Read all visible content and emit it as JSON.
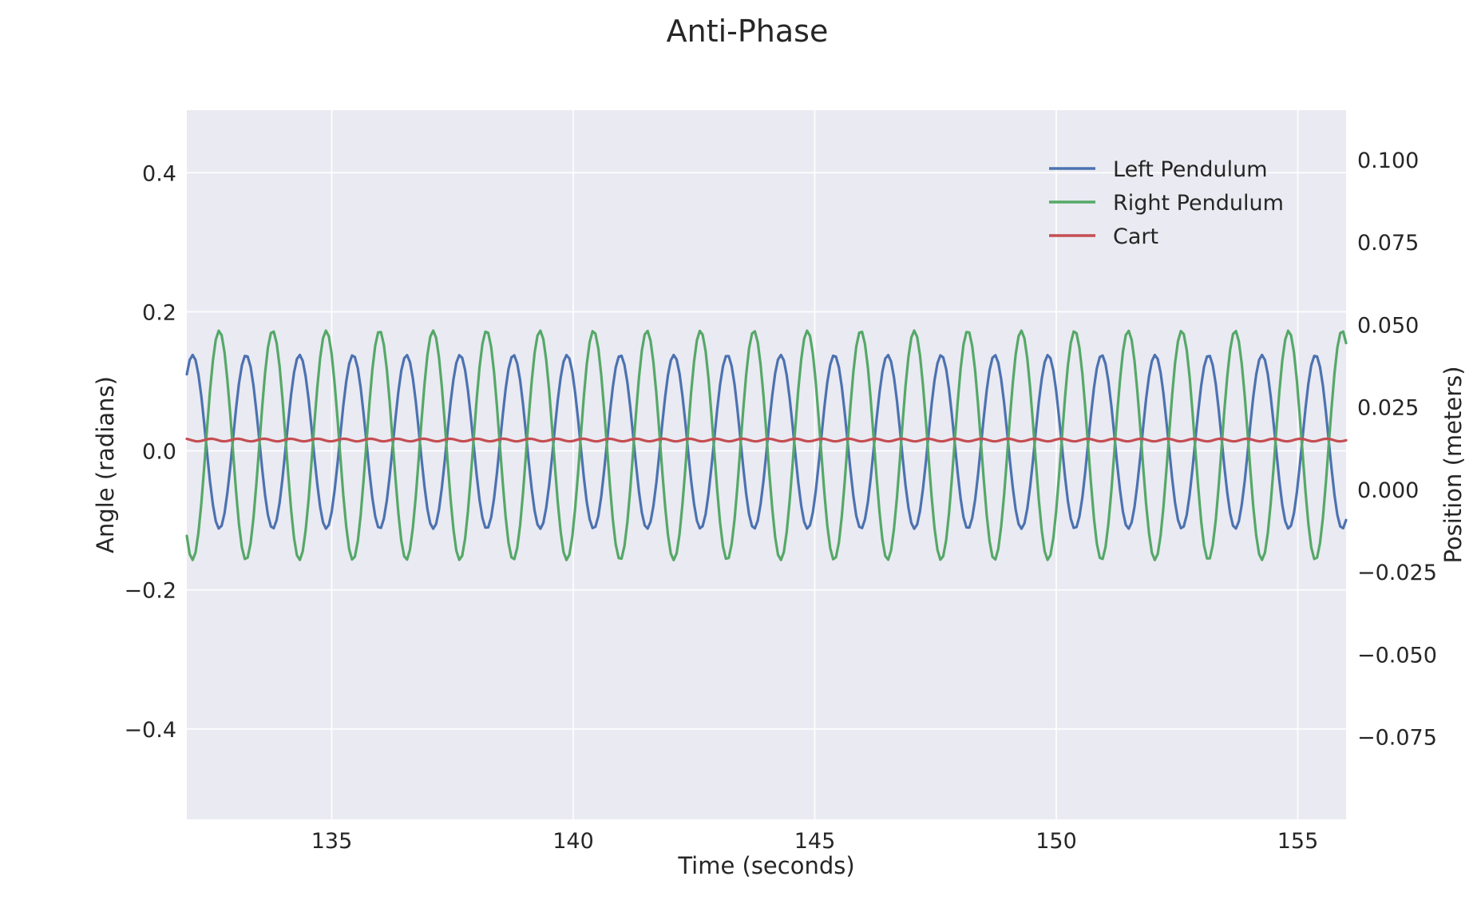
{
  "chart_data": {
    "type": "line",
    "title": "Anti-Phase",
    "xlabel": "Time (seconds)",
    "ylabel_left": "Angle (radians)",
    "ylabel_right": "Position (meters)",
    "xlim": [
      132,
      156
    ],
    "ylim_left": [
      -0.53,
      0.49
    ],
    "ylim_right": [
      -0.1,
      0.115
    ],
    "x_ticks": [
      135,
      140,
      145,
      150,
      155
    ],
    "x_tick_labels": [
      "135",
      "140",
      "145",
      "150",
      "155"
    ],
    "y_left_ticks": [
      0.4,
      0.2,
      0.0,
      -0.2,
      -0.4
    ],
    "y_left_tick_labels": [
      "0.4",
      "0.2",
      "0.0",
      "−0.2",
      "−0.4"
    ],
    "y_right_ticks": [
      0.1,
      0.075,
      0.05,
      0.025,
      0.0,
      -0.025,
      -0.05,
      -0.075
    ],
    "y_right_tick_labels": [
      "0.100",
      "0.075",
      "0.050",
      "0.025",
      "0.000",
      "−0.025",
      "−0.050",
      "−0.075"
    ],
    "grid": true,
    "legend_position": "top-right",
    "series": [
      {
        "name": "Left Pendulum",
        "axis": "left",
        "color": "#4c72b0",
        "model": "sinusoid",
        "t_range": [
          132,
          156
        ],
        "amplitude": 0.125,
        "offset": 0.013,
        "period": 1.107,
        "peak_time": 132.12
      },
      {
        "name": "Right Pendulum",
        "axis": "left",
        "color": "#55a868",
        "model": "sinusoid",
        "t_range": [
          132,
          156
        ],
        "amplitude": 0.165,
        "offset": 0.008,
        "period": 1.107,
        "peak_time": 132.67
      },
      {
        "name": "Cart",
        "axis": "right",
        "color": "#c44e52",
        "model": "sinusoid",
        "t_range": [
          132,
          156
        ],
        "amplitude": 0.0004,
        "offset": 0.015,
        "period": 0.55,
        "peak_time": 132.5
      }
    ]
  }
}
